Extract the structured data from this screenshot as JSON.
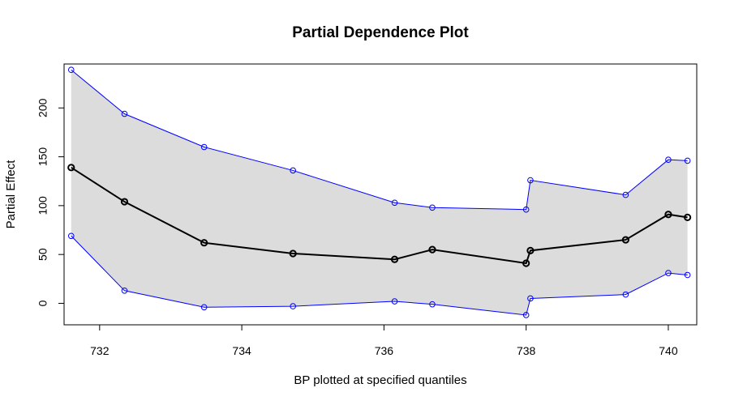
{
  "chart_data": {
    "type": "line",
    "title": "Partial Dependence Plot",
    "xlabel": "BP plotted at specified quantiles",
    "ylabel": "Partial Effect",
    "xlim": [
      731.5,
      740.4
    ],
    "ylim": [
      -22,
      245
    ],
    "x_ticks": [
      732,
      734,
      736,
      738,
      740
    ],
    "y_ticks": [
      0,
      50,
      100,
      150,
      200
    ],
    "grid": false,
    "legend": "none",
    "x": [
      731.6,
      732.35,
      733.47,
      734.72,
      736.15,
      736.68,
      738.0,
      738.06,
      739.4,
      740.0,
      740.27
    ],
    "series": [
      {
        "role": "upper",
        "values": [
          239,
          194,
          160,
          136,
          103,
          98,
          96,
          126,
          111,
          147,
          146
        ],
        "color": "#0000ff"
      },
      {
        "role": "estimate",
        "values": [
          139,
          104,
          62,
          51,
          45,
          55,
          41,
          54,
          65,
          91,
          88
        ],
        "color": "#000000"
      },
      {
        "role": "lower",
        "values": [
          69,
          13,
          -4,
          -3,
          2,
          -1,
          -12,
          5,
          9,
          31,
          29
        ],
        "color": "#0000ff"
      }
    ],
    "band_color": "#dcdcdc"
  }
}
